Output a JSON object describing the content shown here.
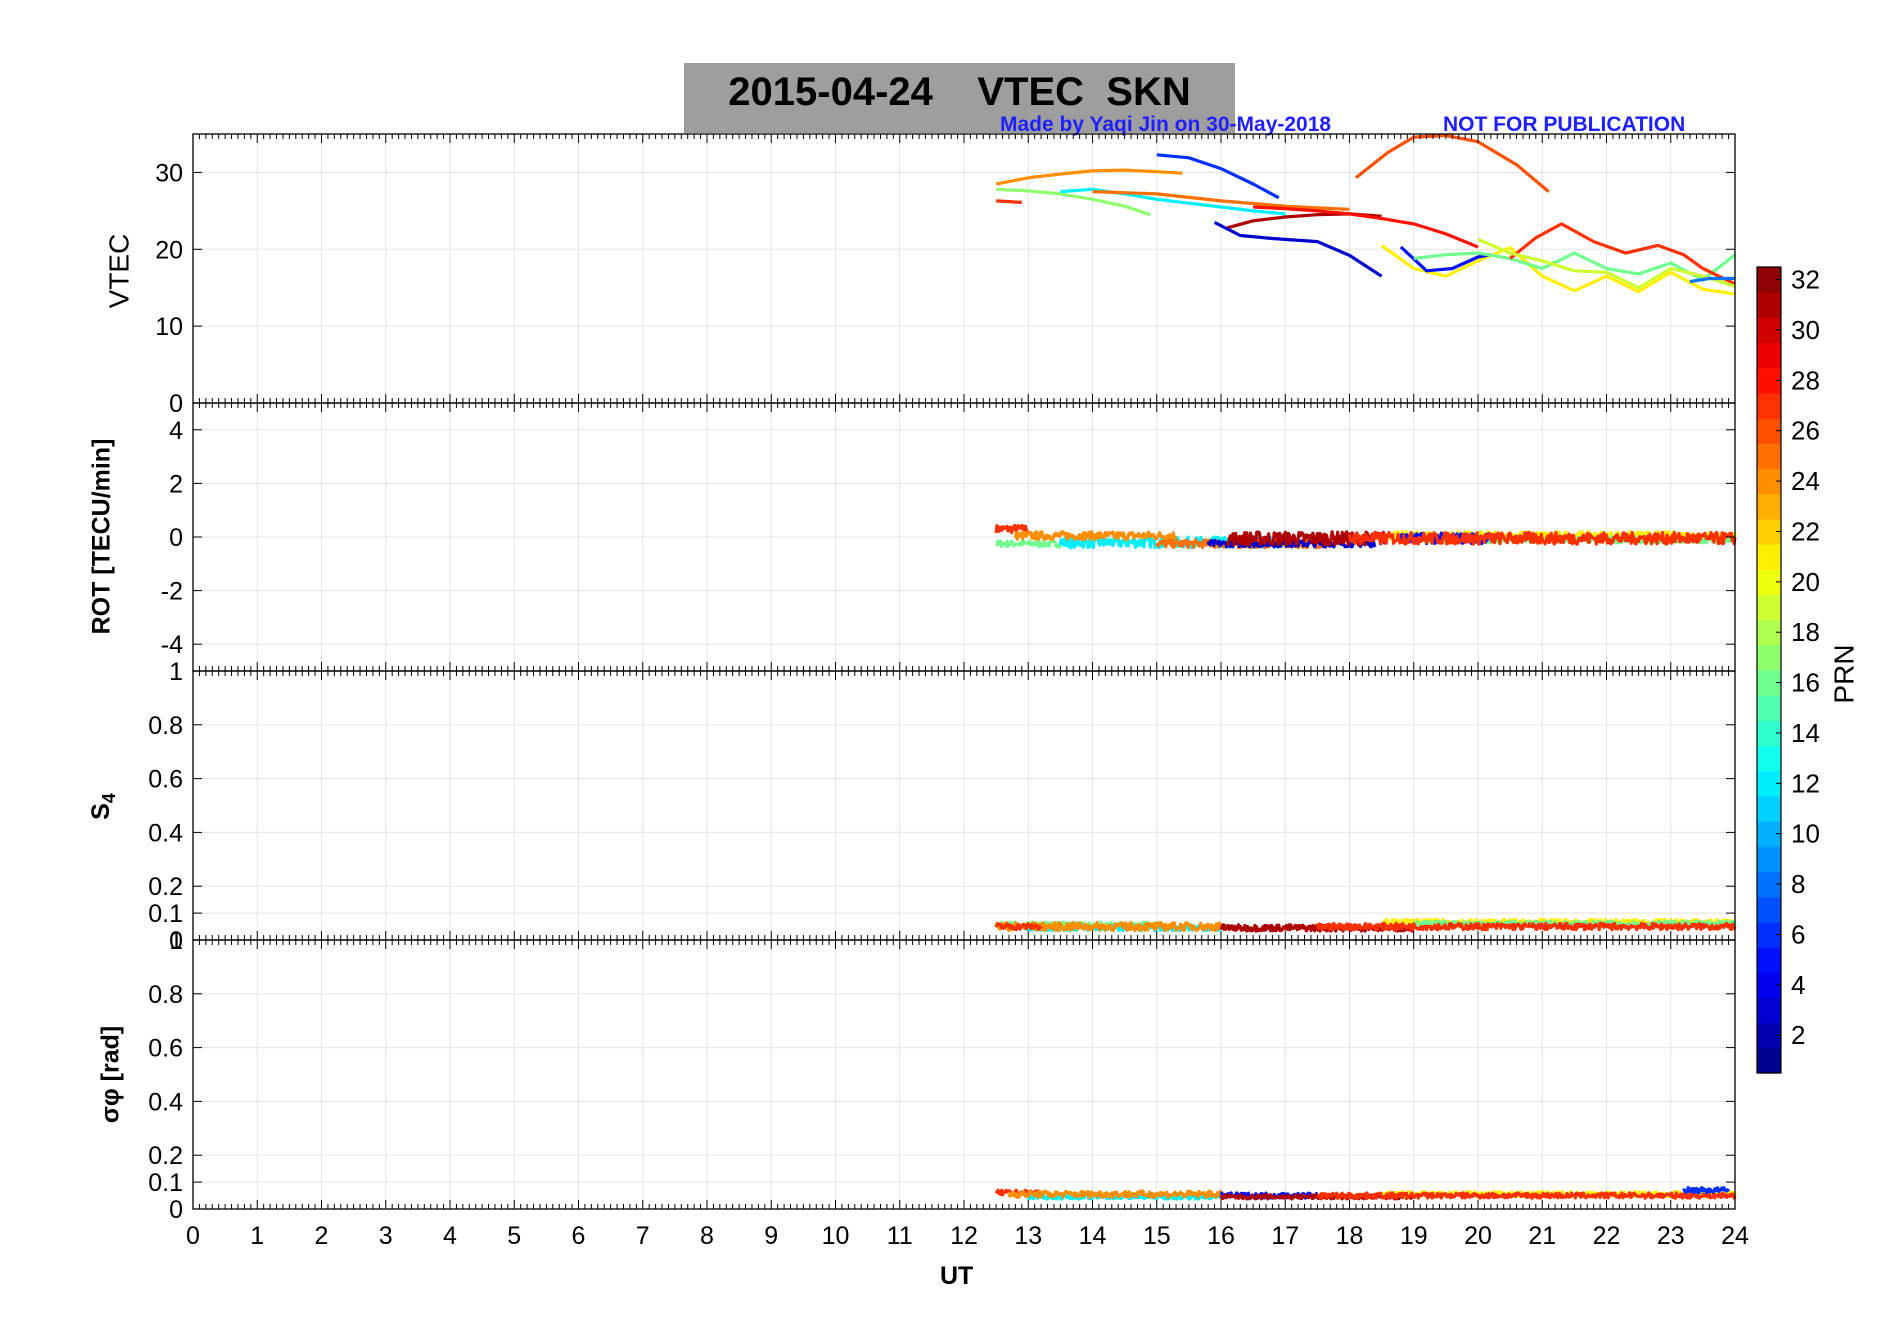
{
  "header": {
    "date": "2015-04-24",
    "product": "VTEC",
    "station": "SKN",
    "credit": "Made by Yaqi Jin on 30-May-2018",
    "notice": "NOT FOR PUBLICATION"
  },
  "colors": {
    "title_bg": "#9e9e9e",
    "credit": "#1f1fff",
    "grid": "#e3e3e3"
  },
  "chart_data": {
    "type": "line",
    "xlabel": "UT",
    "xlim": [
      0,
      24
    ],
    "xticks": [
      0,
      1,
      2,
      3,
      4,
      5,
      6,
      7,
      8,
      9,
      10,
      11,
      12,
      13,
      14,
      15,
      16,
      17,
      18,
      19,
      20,
      21,
      22,
      23,
      24
    ],
    "colorbar": {
      "label": "PRN",
      "range": [
        1,
        32
      ],
      "colormap": "jet",
      "ticks": [
        2,
        4,
        6,
        8,
        10,
        12,
        14,
        16,
        18,
        20,
        22,
        24,
        26,
        28,
        30,
        32
      ]
    },
    "panels": [
      {
        "id": "vtec",
        "ylabel": "VTEC",
        "ylim": [
          0,
          35
        ],
        "yticks": [
          0,
          10,
          20,
          30
        ],
        "series": [
          {
            "prn": 24,
            "x": [
              12.5,
              13,
              13.5,
              14,
              14.5,
              15,
              15.4
            ],
            "y": [
              28.5,
              29.3,
              29.8,
              30.2,
              30.3,
              30.1,
              29.9
            ]
          },
          {
            "prn": 27,
            "x": [
              12.5,
              12.9
            ],
            "y": [
              26.3,
              26.1
            ]
          },
          {
            "prn": 17,
            "x": [
              12.5,
              13,
              13.5,
              14,
              14.5,
              14.9
            ],
            "y": [
              27.8,
              27.6,
              27.2,
              26.5,
              25.6,
              24.5
            ]
          },
          {
            "prn": 12,
            "x": [
              13.5,
              14,
              14.5,
              15,
              15.5,
              16,
              16.5,
              17
            ],
            "y": [
              27.5,
              27.8,
              27.2,
              26.5,
              26,
              25.5,
              25,
              24.6
            ]
          },
          {
            "prn": 6,
            "x": [
              15,
              15.5,
              16,
              16.5,
              16.9
            ],
            "y": [
              32.3,
              31.9,
              30.5,
              28.5,
              26.7
            ]
          },
          {
            "prn": 25,
            "x": [
              14,
              15,
              16,
              17,
              17.5,
              18
            ],
            "y": [
              27.5,
              27.2,
              26.3,
              25.6,
              25.4,
              25.2
            ]
          },
          {
            "prn": 31,
            "x": [
              16.1,
              16.5,
              17,
              17.5,
              18,
              18.5
            ],
            "y": [
              22.8,
              23.7,
              24.2,
              24.5,
              24.6,
              24.3
            ]
          },
          {
            "prn": 28,
            "x": [
              16.5,
              17,
              17.5,
              18,
              18.5,
              19,
              19.5,
              20
            ],
            "y": [
              25.5,
              25.3,
              25,
              24.6,
              24,
              23.3,
              22,
              20.3
            ]
          },
          {
            "prn": 3,
            "x": [
              15.9,
              16.3,
              16.8,
              17.5,
              18,
              18.5
            ],
            "y": [
              23.5,
              21.8,
              21.4,
              21,
              19.2,
              16.5
            ]
          },
          {
            "prn": 26,
            "x": [
              18.1,
              18.6,
              19,
              19.5,
              20,
              20.6,
              21.1
            ],
            "y": [
              29.3,
              32.6,
              34.6,
              34.8,
              34,
              31,
              27.5
            ]
          },
          {
            "prn": 21,
            "x": [
              18.5,
              19,
              19.5,
              20,
              20.5,
              21,
              21.5,
              22,
              22.5,
              23,
              23.5,
              24
            ],
            "y": [
              20.5,
              17.5,
              16.5,
              18.5,
              20.2,
              16.5,
              14.6,
              16.5,
              14.5,
              17,
              14.8,
              14.2
            ]
          },
          {
            "prn": 5,
            "x": [
              18.8,
              19.2,
              19.6,
              20,
              20.2
            ],
            "y": [
              20.3,
              17.2,
              17.5,
              19,
              19.3
            ]
          },
          {
            "prn": 16,
            "x": [
              19,
              19.5,
              20,
              20.5,
              21,
              21.5,
              22,
              22.5,
              23,
              23.5,
              24
            ],
            "y": [
              18.8,
              19.3,
              19.5,
              18.8,
              17.5,
              19.5,
              17.5,
              16.8,
              18.2,
              16,
              19.3
            ]
          },
          {
            "prn": 27,
            "x": [
              20.5,
              20.9,
              21.3,
              21.8,
              22.3,
              22.8,
              23.2,
              23.5,
              24
            ],
            "y": [
              18.8,
              21.5,
              23.3,
              21,
              19.5,
              20.5,
              19.3,
              17.5,
              15.5
            ]
          },
          {
            "prn": 19,
            "x": [
              20,
              20.5,
              21,
              21.5,
              22,
              22.5,
              23,
              23.5,
              24
            ],
            "y": [
              21.3,
              19.5,
              18.5,
              17.2,
              17,
              15,
              17.5,
              16.5,
              15.2
            ]
          },
          {
            "prn": 8,
            "x": [
              23.3,
              23.6,
              24
            ],
            "y": [
              15.8,
              16.2,
              16.2
            ]
          }
        ]
      },
      {
        "id": "rot",
        "ylabel": "ROT [TECU/min]",
        "ylim": [
          -5,
          5
        ],
        "yticks": [
          -4,
          -2,
          0,
          2,
          4
        ],
        "bands": [
          {
            "prn": 27,
            "x": [
              12.5,
              13
            ],
            "y": 0.3,
            "noise": 0.15
          },
          {
            "prn": 16,
            "x": [
              12.5,
              13.5
            ],
            "y": -0.25,
            "noise": 0.12
          },
          {
            "prn": 12,
            "x": [
              13.5,
              17
            ],
            "y": -0.2,
            "noise": 0.2
          },
          {
            "prn": 24,
            "x": [
              12.8,
              15.3
            ],
            "y": 0.05,
            "noise": 0.15
          },
          {
            "prn": 25,
            "x": [
              15,
              17.8
            ],
            "y": -0.25,
            "noise": 0.15
          },
          {
            "prn": 3,
            "x": [
              15.8,
              18.4
            ],
            "y": -0.25,
            "noise": 0.12
          },
          {
            "prn": 31,
            "x": [
              16.1,
              18.6
            ],
            "y": -0.05,
            "noise": 0.25
          },
          {
            "prn": 21,
            "x": [
              18.5,
              24
            ],
            "y": 0.05,
            "noise": 0.15
          },
          {
            "prn": 16,
            "x": [
              19,
              24
            ],
            "y": -0.1,
            "noise": 0.12
          },
          {
            "prn": 5,
            "x": [
              18.8,
              20.2
            ],
            "y": -0.05,
            "noise": 0.2
          },
          {
            "prn": 27,
            "x": [
              18,
              24
            ],
            "y": -0.05,
            "noise": 0.22
          }
        ]
      },
      {
        "id": "s4",
        "ylabel": "S4",
        "ylim": [
          0,
          1
        ],
        "yticks": [
          0,
          0.1,
          0.2,
          0.4,
          0.6,
          0.8,
          1
        ],
        "bands": [
          {
            "prn": 16,
            "x": [
              12.5,
              15
            ],
            "y": 0.055,
            "noise": 0.012
          },
          {
            "prn": 12,
            "x": [
              13,
              16
            ],
            "y": 0.045,
            "noise": 0.01
          },
          {
            "prn": 24,
            "x": [
              12.5,
              16
            ],
            "y": 0.05,
            "noise": 0.015
          },
          {
            "prn": 27,
            "x": [
              12.5,
              13.2
            ],
            "y": 0.05,
            "noise": 0.012
          },
          {
            "prn": 31,
            "x": [
              16,
              19
            ],
            "y": 0.045,
            "noise": 0.012
          },
          {
            "prn": 21,
            "x": [
              18.5,
              24
            ],
            "y": 0.065,
            "noise": 0.012
          },
          {
            "prn": 16,
            "x": [
              19,
              24
            ],
            "y": 0.06,
            "noise": 0.01
          },
          {
            "prn": 27,
            "x": [
              17.5,
              24
            ],
            "y": 0.05,
            "noise": 0.012
          }
        ]
      },
      {
        "id": "sigphi",
        "ylabel": "σφ [rad]",
        "ylim": [
          0,
          1
        ],
        "yticks": [
          0,
          0.1,
          0.2,
          0.4,
          0.6,
          0.8,
          1
        ],
        "bands": [
          {
            "prn": 27,
            "x": [
              12.5,
              13.2
            ],
            "y": 0.06,
            "noise": 0.01
          },
          {
            "prn": 12,
            "x": [
              13,
              16
            ],
            "y": 0.045,
            "noise": 0.008
          },
          {
            "prn": 24,
            "x": [
              12.7,
              16
            ],
            "y": 0.055,
            "noise": 0.012
          },
          {
            "prn": 5,
            "x": [
              16,
              17.5
            ],
            "y": 0.05,
            "noise": 0.01
          },
          {
            "prn": 31,
            "x": [
              16,
              19
            ],
            "y": 0.045,
            "noise": 0.008
          },
          {
            "prn": 21,
            "x": [
              18.5,
              24
            ],
            "y": 0.055,
            "noise": 0.01
          },
          {
            "prn": 27,
            "x": [
              17.5,
              24
            ],
            "y": 0.05,
            "noise": 0.01
          },
          {
            "prn": 6,
            "x": [
              23.2,
              23.9
            ],
            "y": 0.07,
            "noise": 0.01
          }
        ]
      }
    ]
  }
}
